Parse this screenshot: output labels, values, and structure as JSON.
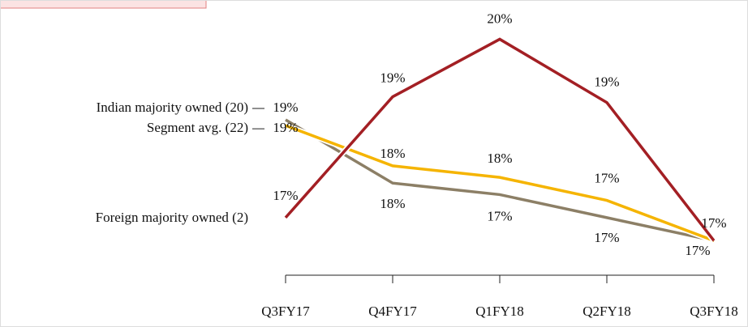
{
  "chart_data": {
    "type": "line",
    "categories": [
      "Q3FY17",
      "Q4FY17",
      "Q1FY18",
      "Q2FY18",
      "Q3FY18"
    ],
    "series": [
      {
        "name": "Indian majority owned (20)",
        "color": "#8c7f66",
        "values": [
          18.7,
          17.6,
          17.4,
          17.0,
          16.6
        ],
        "value_labels": [
          "19%",
          "18%",
          "17%",
          "17%",
          "17%"
        ]
      },
      {
        "name": "Segment avg. (22)",
        "color": "#f5b400",
        "values": [
          18.6,
          17.9,
          17.7,
          17.3,
          16.6
        ],
        "value_labels": [
          "19%",
          "18%",
          "18%",
          "17%",
          null
        ]
      },
      {
        "name": "Foreign majority owned (2)",
        "color": "#a31f24",
        "values": [
          17.0,
          19.1,
          20.1,
          19.0,
          16.6
        ],
        "value_labels": [
          "17%",
          "19%",
          "20%",
          "19%",
          "17%"
        ]
      }
    ],
    "ylim": [
      16,
      20.5
    ]
  }
}
